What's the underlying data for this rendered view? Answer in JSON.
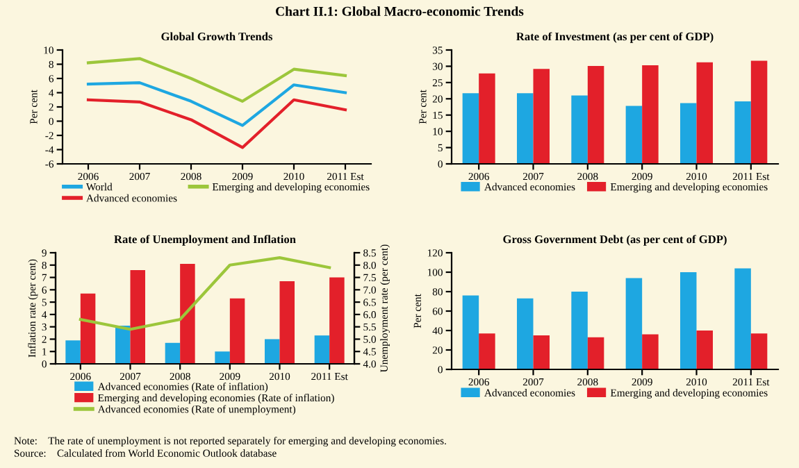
{
  "chart_data": [
    {
      "type": "line",
      "title": "Global Growth Trends",
      "ylabel": "Per cent",
      "annotations": [
        "Chart II.1: Global Macro-economic Trends"
      ],
      "categories": [
        "2006",
        "2007",
        "2008",
        "2009",
        "2010",
        "2011 Est"
      ],
      "series": [
        {
          "name": "World",
          "color": "#1ea7e1",
          "values": [
            5.2,
            5.4,
            2.8,
            -0.6,
            5.1,
            4.0
          ]
        },
        {
          "name": "Advanced economies",
          "color": "#e3202a",
          "values": [
            3.0,
            2.7,
            0.2,
            -3.7,
            3.0,
            1.6
          ]
        },
        {
          "name": "Emerging and developing economies",
          "color": "#9cc63b",
          "values": [
            8.2,
            8.8,
            6.0,
            2.8,
            7.3,
            6.4
          ]
        }
      ],
      "ylim": [
        -6,
        10
      ],
      "yticks": [
        -6,
        -4,
        -2,
        0,
        2,
        4,
        6,
        8,
        10
      ],
      "legend": "bottom",
      "grid": false
    },
    {
      "type": "bar",
      "title": "Rate of Investment (as per cent of GDP)",
      "ylabel": "Per cent",
      "categories": [
        "2006",
        "2007",
        "2008",
        "2009",
        "2010",
        "2011 Est"
      ],
      "series": [
        {
          "name": "Advanced economies",
          "color": "#1ea7e1",
          "values": [
            21.7,
            21.7,
            21.0,
            17.8,
            18.7,
            19.2
          ]
        },
        {
          "name": "Emerging and developing economies",
          "color": "#e3202a",
          "values": [
            27.8,
            29.2,
            30.1,
            30.3,
            31.2,
            31.7
          ]
        }
      ],
      "ylim": [
        0,
        35
      ],
      "yticks": [
        0,
        5,
        10,
        15,
        20,
        25,
        30,
        35
      ],
      "legend": "bottom",
      "grid": false
    },
    {
      "type": "bar",
      "title": "Rate of Unemployment and Inflation",
      "ylabel": "Inflation rate (per cent)",
      "y2label": "Unemployment rate (per cent)",
      "categories": [
        "2006",
        "2007",
        "2008",
        "2009",
        "2010",
        "2011 Est"
      ],
      "series": [
        {
          "name": "Advanced economies (Rate of inflation)",
          "color": "#1ea7e1",
          "values": [
            1.9,
            3.1,
            1.7,
            1.0,
            2.0,
            2.3
          ]
        },
        {
          "name": "Emerging and developing economies (Rate of inflation)",
          "color": "#e3202a",
          "values": [
            5.7,
            7.6,
            8.1,
            5.3,
            6.7,
            7.0
          ]
        },
        {
          "name": "Advanced economies (Rate of unemployment)",
          "type": "line",
          "axis": "y2",
          "color": "#9cc63b",
          "values": [
            5.8,
            5.4,
            5.8,
            8.0,
            8.3,
            7.9
          ]
        }
      ],
      "ylim": [
        0,
        9
      ],
      "yticks": [
        0,
        1,
        2,
        3,
        4,
        5,
        6,
        7,
        8,
        9
      ],
      "y2lim": [
        4.0,
        8.5
      ],
      "y2ticks": [
        {
          "value": 4.0,
          "label": "4.0"
        },
        {
          "value": 4.5,
          "label": "4.5"
        },
        {
          "value": 5.0,
          "label": "5.0"
        },
        {
          "value": 5.5,
          "label": "5.5"
        },
        {
          "value": 6.0,
          "label": "6.0"
        },
        {
          "value": 6.5,
          "label": "6.5"
        },
        {
          "value": 7.0,
          "label": "7.0"
        },
        {
          "value": 7.5,
          "label": "7.5"
        },
        {
          "value": 8.0,
          "label": "8.0"
        },
        {
          "value": 8.5,
          "label": "8.5"
        }
      ],
      "legend": "bottom",
      "grid": false
    },
    {
      "type": "bar",
      "title": "Gross Government Debt (as per cent of GDP)",
      "ylabel": "Per cent",
      "annotations": [
        "Note: The rate of unemployment is not reported separately for emerging and developing economies.",
        "Source: Calculated from World Economic Outlook database"
      ],
      "categories": [
        "2006",
        "2007",
        "2008",
        "2009",
        "2010",
        "2011 Est"
      ],
      "series": [
        {
          "name": "Advanced economies",
          "color": "#1ea7e1",
          "values": [
            76,
            73,
            80,
            94,
            100,
            104
          ]
        },
        {
          "name": "Emerging and developing economies",
          "color": "#e3202a",
          "values": [
            37,
            35,
            33,
            36,
            40,
            37
          ]
        }
      ],
      "ylim": [
        0,
        120
      ],
      "yticks": [
        0,
        20,
        40,
        60,
        80,
        100,
        120
      ],
      "legend": "bottom",
      "grid": false
    }
  ]
}
